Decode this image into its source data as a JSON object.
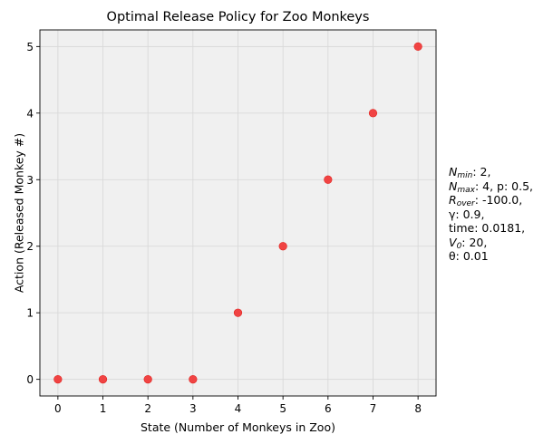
{
  "chart_data": {
    "type": "scatter",
    "title": "Optimal Release Policy for Zoo Monkeys",
    "xlabel": "State (Number of Monkeys in Zoo)",
    "ylabel": "Action (Released Monkey #)",
    "xlim": [
      -0.4,
      8.4
    ],
    "ylim": [
      -0.25,
      5.25
    ],
    "xticks": [
      0,
      1,
      2,
      3,
      4,
      5,
      6,
      7,
      8
    ],
    "yticks": [
      0,
      1,
      2,
      3,
      4,
      5
    ],
    "grid": true,
    "background_color": "#f0f0f0",
    "grid_color": "#d9d9d9",
    "marker_color": "#f03a3a",
    "marker_edge_color": "#e0241f",
    "series": [
      {
        "x": [
          0,
          1,
          2,
          3,
          4,
          5,
          6,
          7,
          8
        ],
        "y": [
          0,
          0,
          0,
          0,
          1,
          2,
          3,
          4,
          5
        ]
      }
    ]
  },
  "params": {
    "n_min_symbol": "N",
    "n_min_sub": "min",
    "n_min_value": ": 2,",
    "n_max_symbol": "N",
    "n_max_sub": "max",
    "n_max_value": ": 4, p: 0.5,",
    "r_over_symbol": "R",
    "r_over_sub": "over",
    "r_over_value": ": -100.0,",
    "gamma_line": "γ: 0.9,",
    "time_line": "time: 0.0181,",
    "v0_symbol": "V",
    "v0_sub": "0",
    "v0_value": ": 20,",
    "theta_line": "θ: 0.01"
  }
}
